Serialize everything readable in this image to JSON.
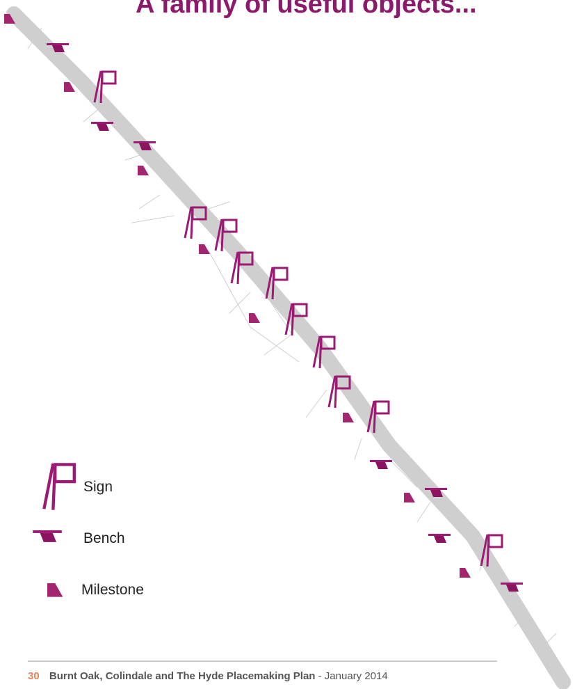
{
  "title": "A family of useful objects...",
  "legend": {
    "items": [
      "Sign",
      "Bench",
      "Milestone"
    ]
  },
  "footer": {
    "page_number": "30",
    "document_title": "Burnt Oak, Colindale and The Hyde Placemaking Plan",
    "date": " - January 2014"
  }
}
